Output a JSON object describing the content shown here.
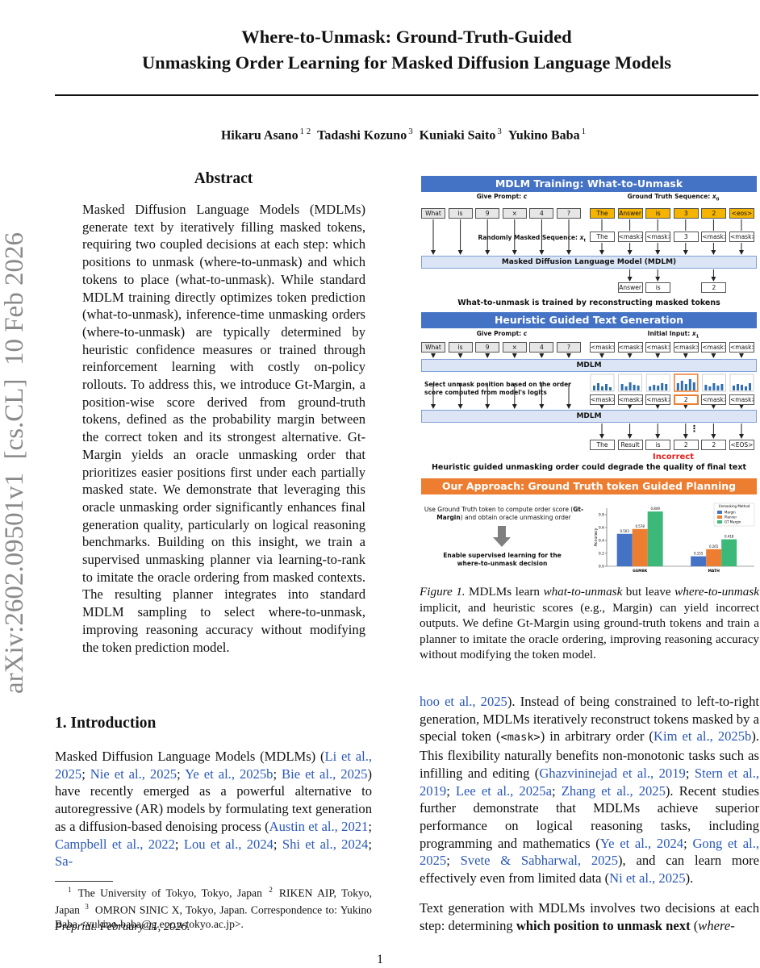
{
  "header": {
    "title_lines": [
      "Where-to-Unmask: Ground-Truth-Guided",
      "Unmasking Order Learning for Masked Diffusion Language Models"
    ],
    "authors": [
      {
        "text": "Hikaru Asano",
        "style": "bold"
      },
      {
        "text": "1 2",
        "style": "sup"
      },
      {
        "text": "Tadashi Kozuno",
        "style": "bold"
      },
      {
        "text": "3",
        "style": "sup"
      },
      {
        "text": "Kuniaki Saito",
        "style": "bold"
      },
      {
        "text": "3",
        "style": "sup"
      },
      {
        "text": "Yukino Baba",
        "style": "bold"
      },
      {
        "text": "1",
        "style": "sup"
      }
    ]
  },
  "side_id": "arXiv:2602.09501v1  [cs.CL]  10 Feb 2026",
  "abstract": {
    "heading": "Abstract",
    "body": [
      "Masked Diffusion Language Models (MDLMs) generate text by iteratively filling masked tokens, requiring two coupled decisions at each step: which positions to unmask (where-to-unmask) and which tokens to place (what-to-unmask). While standard MDLM training directly optimizes token prediction (what-to-unmask), inference-time unmasking orders (where-to-unmask) are typically determined by heuristic confidence measures or trained through reinforcement learning with costly on-policy rollouts. To address this, we introduce Gt-Margin, a position-wise score derived from ground-truth tokens, defined as the probability margin between the correct token and its strongest alternative. Gt-Margin yields an oracle unmasking order that prioritizes easier positions first under each partially masked state. We demonstrate that leveraging this oracle unmasking order significantly enhances final generation quality, particularly on logical reasoning benchmarks. Building on this insight, we train a supervised unmasking planner via learning-to-rank to imitate the oracle ordering from masked contexts. The resulting planner integrates into standard MDLM sampling to select where-to-unmask, improving reasoning accuracy without modifying the token prediction model."
    ]
  },
  "introduction": {
    "heading": "1. Introduction",
    "left": [
      "Masked Diffusion Language Models (MDLMs) (",
      {
        "text": "Li et al., 2025",
        "style": "link"
      },
      "; ",
      {
        "text": "Nie et al., 2025",
        "style": "link"
      },
      "; ",
      {
        "text": "Ye et al., 2025b",
        "style": "link"
      },
      "; ",
      {
        "text": "Bie et al., 2025",
        "style": "link"
      },
      ") have recently emerged as a powerful alternative to autoregressive (AR) models by formulating text generation as a diffusion-based denoising process (",
      {
        "text": "Austin et al., 2021",
        "style": "link"
      },
      "; ",
      {
        "text": "Campbell et al., 2022",
        "style": "link"
      },
      "; ",
      {
        "text": "Lou et al., 2024",
        "style": "link"
      },
      "; ",
      {
        "text": "Shi et al., 2024",
        "style": "link"
      },
      "; ",
      {
        "text": "Sa-",
        "style": "link"
      }
    ],
    "right": [
      {
        "text": "hoo et al., 2025",
        "style": "link"
      },
      "). Instead of being constrained to left-to-right generation, MDLMs iteratively reconstruct tokens masked by a special token (",
      {
        "text": "<mask>",
        "style": "mono"
      },
      ") in arbitrary order (",
      {
        "text": "Kim et al., 2025b",
        "style": "link"
      },
      "). This flexibility naturally benefits non-monotonic tasks such as infilling and editing (",
      {
        "text": "Ghazvininejad et al., 2019",
        "style": "link"
      },
      "; ",
      {
        "text": "Stern et al., 2019",
        "style": "link"
      },
      "; ",
      {
        "text": "Lee et al., 2025a",
        "style": "link"
      },
      "; ",
      {
        "text": "Zhang et al., 2025",
        "style": "link"
      },
      "). Recent studies further demonstrate that MDLMs achieve superior performance on logical reasoning tasks, including programming and mathematics (",
      {
        "text": "Ye et al., 2024",
        "style": "link"
      },
      "; ",
      {
        "text": "Gong et al., 2025",
        "style": "link"
      },
      "; ",
      {
        "text": "Svete & Sabharwal, 2025",
        "style": "link"
      },
      "), and can learn more effectively even from limited data (",
      {
        "text": "Ni et al., 2025",
        "style": "link"
      },
      ")."
    ],
    "right_2": [
      "Text generation with MDLMs involves two decisions at each step: determining ",
      {
        "text": "which position to unmask next",
        "style": "bold"
      },
      " (",
      {
        "text": "where-",
        "style": "italic"
      }
    ]
  },
  "footnote": [
    {
      "text": "1",
      "style": "sup"
    },
    "The University of Tokyo, Tokyo, Japan ",
    {
      "text": "2",
      "style": "sup"
    },
    "RIKEN AIP, Tokyo, Japan ",
    {
      "text": "3",
      "style": "sup"
    },
    "OMRON SINIC X, Tokyo, Japan. Correspondence to: Yukino Baba <yukino-baba@g.ecc.u-tokyo.ac.jp>."
  ],
  "preprint": "Preprint. February 11, 2026.",
  "page_number": "1",
  "figure": {
    "training": {
      "banner": "MDLM Training: What-to-Unmask",
      "prompt_label": [
        "Give Prompt: ",
        {
          "text": "c",
          "style": "italic"
        }
      ],
      "gt_label": [
        "Ground Truth Sequence: ",
        {
          "text": "x",
          "style": "italic"
        },
        {
          "text": "0",
          "style": "sub"
        }
      ],
      "prompt_tokens": [
        "What",
        "is",
        "9",
        "×",
        "4",
        "?"
      ],
      "gt_tokens": [
        "The",
        "Answer",
        "is",
        "3",
        "2",
        "<eos>"
      ],
      "masked_label": [
        "Randomly Masked Sequence: ",
        {
          "text": "x",
          "style": "italic"
        },
        {
          "text": "t",
          "style": "sub"
        }
      ],
      "masked_tokens": [
        "The",
        "<mask>",
        "<mask>",
        "3",
        "<mask>",
        "<mask>"
      ],
      "model": "Masked Diffusion Language Model (MDLM)",
      "outputs": [
        null,
        "Answer",
        "is",
        null,
        "2",
        null
      ],
      "note": "What-to-unmask is trained by reconstructing masked tokens"
    },
    "heuristic": {
      "banner": "Heuristic Guided Text Generation",
      "prompt_label": [
        "Give Prompt: ",
        {
          "text": "c",
          "style": "italic"
        }
      ],
      "input_label": [
        "Initial Input: ",
        {
          "text": "x",
          "style": "italic"
        },
        {
          "text": "1",
          "style": "sub"
        }
      ],
      "prompt_tokens": [
        "What",
        "is",
        "9",
        "×",
        "4",
        "?"
      ],
      "input_tokens": [
        "<mask>",
        "<mask>",
        "<mask>",
        "<mask>",
        "<mask>",
        "<mask>"
      ],
      "model": "MDLM",
      "select_note": "Select unmask position based on the order score computed from model's logits",
      "step_tokens": [
        "<mask>",
        "<mask>",
        "<mask>",
        "2",
        "<mask>",
        "<mask>"
      ],
      "model_2": "MDLM",
      "ellipsis": "⋮",
      "final_tokens": [
        "The",
        "Result",
        "is",
        "2",
        "2",
        "<EOS>"
      ],
      "verdict": "Incorrect",
      "note": "Heuristic guided unmasking order could degrade the quality of final text"
    },
    "approach": {
      "banner": "Our Approach: Ground Truth token Guided Planning",
      "step1": [
        "Use Ground Truth token to compute order score (",
        {
          "text": "Gt-Margin",
          "style": "bold"
        },
        ") and obtain oracle unmasking order"
      ],
      "step2": "Enable supervised learning for the where-to-unmask decision"
    },
    "caption": [
      {
        "text": "Figure 1.",
        "style": "italic"
      },
      "  MDLMs learn ",
      {
        "text": "what-to-unmask",
        "style": "italic"
      },
      " but leave ",
      {
        "text": "where-to-unmask",
        "style": "italic"
      },
      " implicit, and heuristic scores (e.g., Margin) can yield incorrect outputs. We define Gt-Margin using ground-truth tokens and train a planner to imitate the oracle ordering, improving reasoning accuracy without modifying the token model."
    ]
  },
  "chart_data": {
    "type": "bar",
    "y_label": "Accuracy",
    "legend_title": "Unmasking Method",
    "categories": [
      "GSM8K",
      "MATH"
    ],
    "series": [
      {
        "name": "Margin",
        "color": "#4472c4",
        "values": [
          0.503,
          0.155
        ]
      },
      {
        "name": "Planner",
        "color": "#ed7d31",
        "values": [
          0.578,
          0.265
        ]
      },
      {
        "name": "GT Margin",
        "color": "#3cb878",
        "values": [
          0.849,
          0.418
        ]
      }
    ],
    "ylim": [
      0,
      0.9
    ],
    "yticks": [
      {
        "value": 0,
        "label": "0.0"
      },
      {
        "value": 0.2,
        "label": "0.2"
      },
      {
        "value": 0.4,
        "label": "0.4"
      },
      {
        "value": 0.6,
        "label": "0.6"
      },
      {
        "value": 0.8,
        "label": "0.8"
      }
    ],
    "grid": false,
    "legend": "top-right"
  }
}
